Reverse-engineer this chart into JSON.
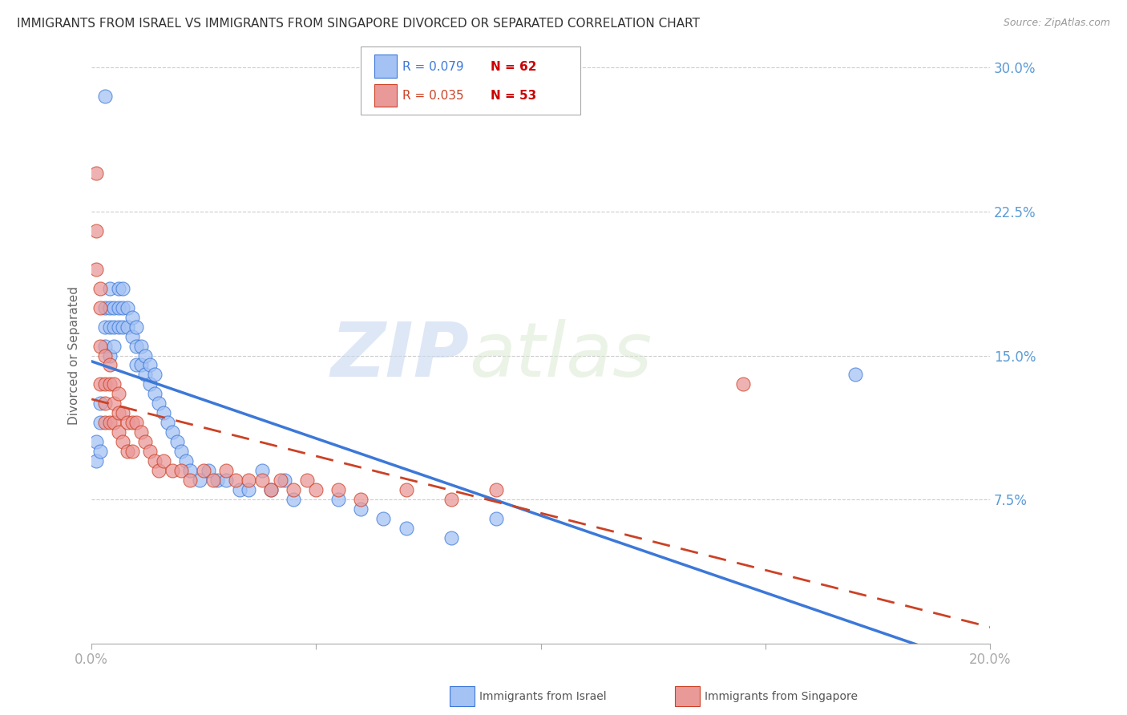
{
  "title": "IMMIGRANTS FROM ISRAEL VS IMMIGRANTS FROM SINGAPORE DIVORCED OR SEPARATED CORRELATION CHART",
  "source": "Source: ZipAtlas.com",
  "ylabel": "Divorced or Separated",
  "xlim": [
    0.0,
    0.2
  ],
  "ylim": [
    0.0,
    0.3
  ],
  "xticks": [
    0.0,
    0.05,
    0.1,
    0.15,
    0.2
  ],
  "xticklabels": [
    "0.0%",
    "",
    "",
    "",
    "20.0%"
  ],
  "yticks": [
    0.075,
    0.15,
    0.225,
    0.3
  ],
  "yticklabels": [
    "7.5%",
    "15.0%",
    "22.5%",
    "30.0%"
  ],
  "legend_R1": "R = 0.079",
  "legend_N1": "N = 62",
  "legend_R2": "R = 0.035",
  "legend_N2": "N = 53",
  "legend_label1": "Immigrants from Israel",
  "legend_label2": "Immigrants from Singapore",
  "color_israel": "#a4c2f4",
  "color_singapore": "#ea9999",
  "color_israel_line": "#3c78d8",
  "color_singapore_line": "#cc4125",
  "watermark_zip": "ZIP",
  "watermark_atlas": "atlas",
  "israel_x": [
    0.003,
    0.001,
    0.001,
    0.002,
    0.002,
    0.002,
    0.003,
    0.003,
    0.003,
    0.004,
    0.004,
    0.004,
    0.004,
    0.005,
    0.005,
    0.005,
    0.006,
    0.006,
    0.006,
    0.007,
    0.007,
    0.007,
    0.008,
    0.008,
    0.009,
    0.009,
    0.01,
    0.01,
    0.01,
    0.011,
    0.011,
    0.012,
    0.012,
    0.013,
    0.013,
    0.014,
    0.014,
    0.015,
    0.016,
    0.017,
    0.018,
    0.019,
    0.02,
    0.021,
    0.022,
    0.024,
    0.026,
    0.028,
    0.03,
    0.033,
    0.035,
    0.038,
    0.04,
    0.043,
    0.045,
    0.055,
    0.06,
    0.065,
    0.07,
    0.08,
    0.09,
    0.17
  ],
  "israel_y": [
    0.285,
    0.105,
    0.095,
    0.125,
    0.115,
    0.1,
    0.175,
    0.165,
    0.155,
    0.185,
    0.175,
    0.165,
    0.15,
    0.175,
    0.165,
    0.155,
    0.185,
    0.175,
    0.165,
    0.185,
    0.175,
    0.165,
    0.175,
    0.165,
    0.17,
    0.16,
    0.165,
    0.155,
    0.145,
    0.155,
    0.145,
    0.15,
    0.14,
    0.145,
    0.135,
    0.14,
    0.13,
    0.125,
    0.12,
    0.115,
    0.11,
    0.105,
    0.1,
    0.095,
    0.09,
    0.085,
    0.09,
    0.085,
    0.085,
    0.08,
    0.08,
    0.09,
    0.08,
    0.085,
    0.075,
    0.075,
    0.07,
    0.065,
    0.06,
    0.055,
    0.065,
    0.14
  ],
  "singapore_x": [
    0.001,
    0.001,
    0.001,
    0.002,
    0.002,
    0.002,
    0.002,
    0.003,
    0.003,
    0.003,
    0.003,
    0.004,
    0.004,
    0.004,
    0.005,
    0.005,
    0.005,
    0.006,
    0.006,
    0.006,
    0.007,
    0.007,
    0.008,
    0.008,
    0.009,
    0.009,
    0.01,
    0.011,
    0.012,
    0.013,
    0.014,
    0.015,
    0.016,
    0.018,
    0.02,
    0.022,
    0.025,
    0.027,
    0.03,
    0.032,
    0.035,
    0.038,
    0.04,
    0.042,
    0.045,
    0.048,
    0.05,
    0.055,
    0.06,
    0.07,
    0.08,
    0.09,
    0.145
  ],
  "singapore_y": [
    0.245,
    0.215,
    0.195,
    0.185,
    0.175,
    0.155,
    0.135,
    0.15,
    0.135,
    0.125,
    0.115,
    0.145,
    0.135,
    0.115,
    0.135,
    0.125,
    0.115,
    0.13,
    0.12,
    0.11,
    0.12,
    0.105,
    0.115,
    0.1,
    0.115,
    0.1,
    0.115,
    0.11,
    0.105,
    0.1,
    0.095,
    0.09,
    0.095,
    0.09,
    0.09,
    0.085,
    0.09,
    0.085,
    0.09,
    0.085,
    0.085,
    0.085,
    0.08,
    0.085,
    0.08,
    0.085,
    0.08,
    0.08,
    0.075,
    0.08,
    0.075,
    0.08,
    0.135
  ]
}
